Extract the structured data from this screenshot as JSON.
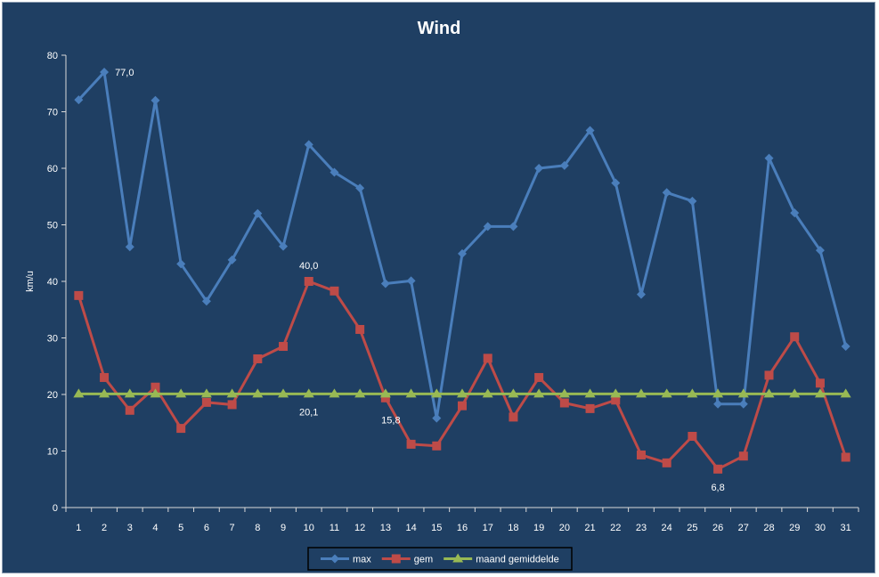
{
  "chart_data": {
    "type": "line",
    "title": "Wind",
    "ylabel": "km/u",
    "xlabel": "",
    "ylim": [
      0,
      80
    ],
    "yticks": [
      0,
      10,
      20,
      30,
      40,
      50,
      60,
      70,
      80
    ],
    "categories": [
      "1",
      "2",
      "3",
      "4",
      "5",
      "6",
      "7",
      "8",
      "9",
      "10",
      "11",
      "12",
      "13",
      "14",
      "15",
      "16",
      "17",
      "18",
      "19",
      "20",
      "21",
      "22",
      "23",
      "24",
      "25",
      "26",
      "27",
      "28",
      "29",
      "30",
      "31"
    ],
    "series": [
      {
        "name": "max",
        "color": "#4a7ebb",
        "marker": "diamond",
        "values": [
          72.1,
          77.0,
          46.1,
          72.0,
          43.1,
          36.5,
          43.8,
          52.0,
          46.2,
          64.2,
          59.3,
          56.5,
          39.6,
          40.1,
          15.8,
          44.9,
          49.7,
          49.7,
          60.0,
          60.5,
          66.7,
          57.4,
          37.7,
          55.7,
          54.2,
          18.3,
          18.3,
          61.8,
          52.1,
          45.5,
          28.5
        ]
      },
      {
        "name": "gem",
        "color": "#be4b48",
        "marker": "square",
        "values": [
          37.5,
          23.0,
          17.2,
          21.3,
          14.0,
          18.6,
          18.2,
          26.3,
          28.5,
          40.0,
          38.3,
          31.5,
          19.4,
          11.2,
          10.9,
          18.0,
          26.4,
          16.0,
          23.0,
          18.5,
          17.5,
          19.0,
          9.3,
          7.9,
          12.6,
          6.8,
          9.1,
          23.4,
          30.2,
          22.0,
          8.9
        ]
      },
      {
        "name": "maand gemiddelde",
        "color": "#98b954",
        "marker": "triangle",
        "values": [
          20.1,
          20.1,
          20.1,
          20.1,
          20.1,
          20.1,
          20.1,
          20.1,
          20.1,
          20.1,
          20.1,
          20.1,
          20.1,
          20.1,
          20.1,
          20.1,
          20.1,
          20.1,
          20.1,
          20.1,
          20.1,
          20.1,
          20.1,
          20.1,
          20.1,
          20.1,
          20.1,
          20.1,
          20.1,
          20.1,
          20.1
        ]
      }
    ],
    "annotations": [
      {
        "text": "77,0",
        "x": "2",
        "value": 77.0,
        "position": "right"
      },
      {
        "text": "40,0",
        "x": "10",
        "value": 40.0,
        "position": "above"
      },
      {
        "text": "20,1",
        "x": "10",
        "value": 20.1,
        "position": "below"
      },
      {
        "text": "15,8",
        "x": "14",
        "value": 15.8,
        "position": "left"
      },
      {
        "text": "6,8",
        "x": "26",
        "value": 6.8,
        "position": "below"
      }
    ],
    "legend": {
      "placement": "bottom"
    },
    "grid": false,
    "background": "#1f3f63"
  }
}
